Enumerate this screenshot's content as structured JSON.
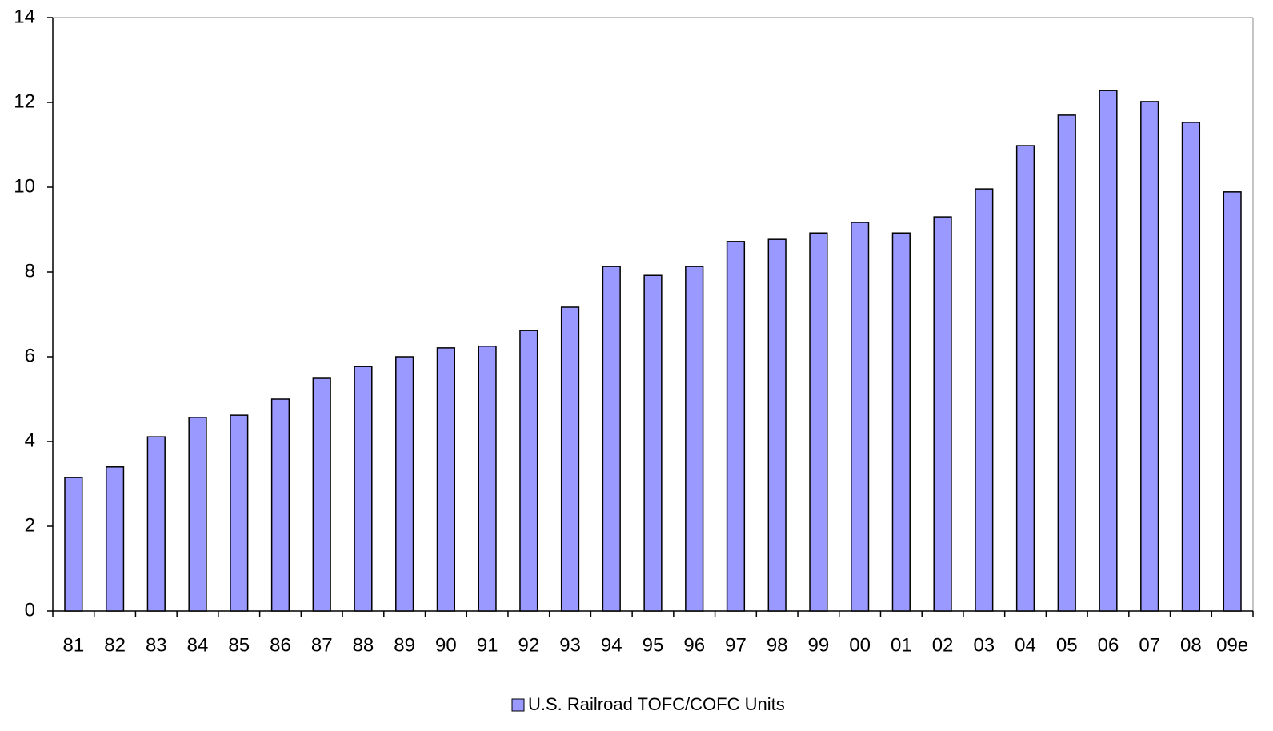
{
  "chart_data": {
    "type": "bar",
    "categories": [
      "81",
      "82",
      "83",
      "84",
      "85",
      "86",
      "87",
      "88",
      "89",
      "90",
      "91",
      "92",
      "93",
      "94",
      "95",
      "96",
      "97",
      "98",
      "99",
      "00",
      "01",
      "02",
      "03",
      "04",
      "05",
      "06",
      "07",
      "08",
      "09e"
    ],
    "series": [
      {
        "name": "U.S. Railroad TOFC/COFC Units",
        "color": "#9999ff",
        "values": [
          3.15,
          3.4,
          4.11,
          4.57,
          4.62,
          5.0,
          5.49,
          5.77,
          6.0,
          6.21,
          6.25,
          6.62,
          7.17,
          8.13,
          7.92,
          8.13,
          8.72,
          8.77,
          8.92,
          9.17,
          8.92,
          9.3,
          9.96,
          10.98,
          11.7,
          12.28,
          12.02,
          11.53,
          9.89
        ]
      }
    ],
    "ylim": [
      0,
      14
    ],
    "yticks": [
      0,
      2,
      4,
      6,
      8,
      10,
      12,
      14
    ],
    "grid": false,
    "legend": "bottom"
  }
}
